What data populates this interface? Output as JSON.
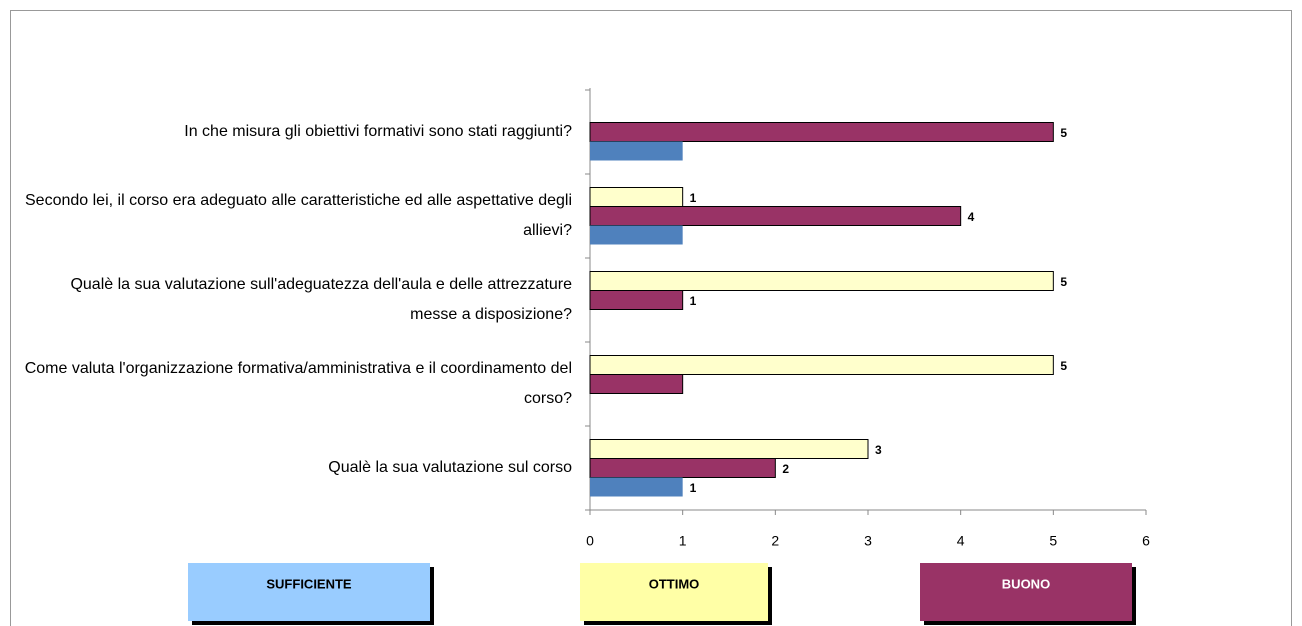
{
  "chart_data": {
    "type": "hbar",
    "categories": [
      "In che misura gli obiettivi formativi sono stati raggiunti?",
      "Secondo lei, il corso era adeguato alle caratteristiche ed alle aspettative degli allievi?",
      "Qualè la sua valutazione sull'adeguatezza dell'aula e delle attrezzature messe a disposizione?",
      "Come valuta l'organizzazione formativa/amministrativa e il coordinamento del corso?",
      "Qualè la sua valutazione sul corso"
    ],
    "series": [
      {
        "name": "OTTIMO",
        "color": "#ffffcc",
        "legend_color": "#ffffa6",
        "values": [
          null,
          1,
          5,
          5,
          3
        ],
        "value_labels": [
          null,
          1,
          5,
          5,
          3
        ]
      },
      {
        "name": "BUONO",
        "color": "#993366",
        "legend_color": "#993366",
        "values": [
          5,
          4,
          1,
          1,
          2
        ],
        "value_labels": [
          5,
          4,
          1,
          null,
          2
        ]
      },
      {
        "name": "SUFFICIENTE",
        "color": "#4f81bd",
        "legend_color": "#99ccff",
        "values": [
          1,
          1,
          null,
          null,
          1
        ],
        "value_labels": [
          null,
          null,
          null,
          null,
          1
        ]
      }
    ],
    "xlim": [
      0,
      6
    ],
    "xticks": [
      0,
      1,
      2,
      3,
      4,
      5,
      6
    ],
    "grid": false
  }
}
